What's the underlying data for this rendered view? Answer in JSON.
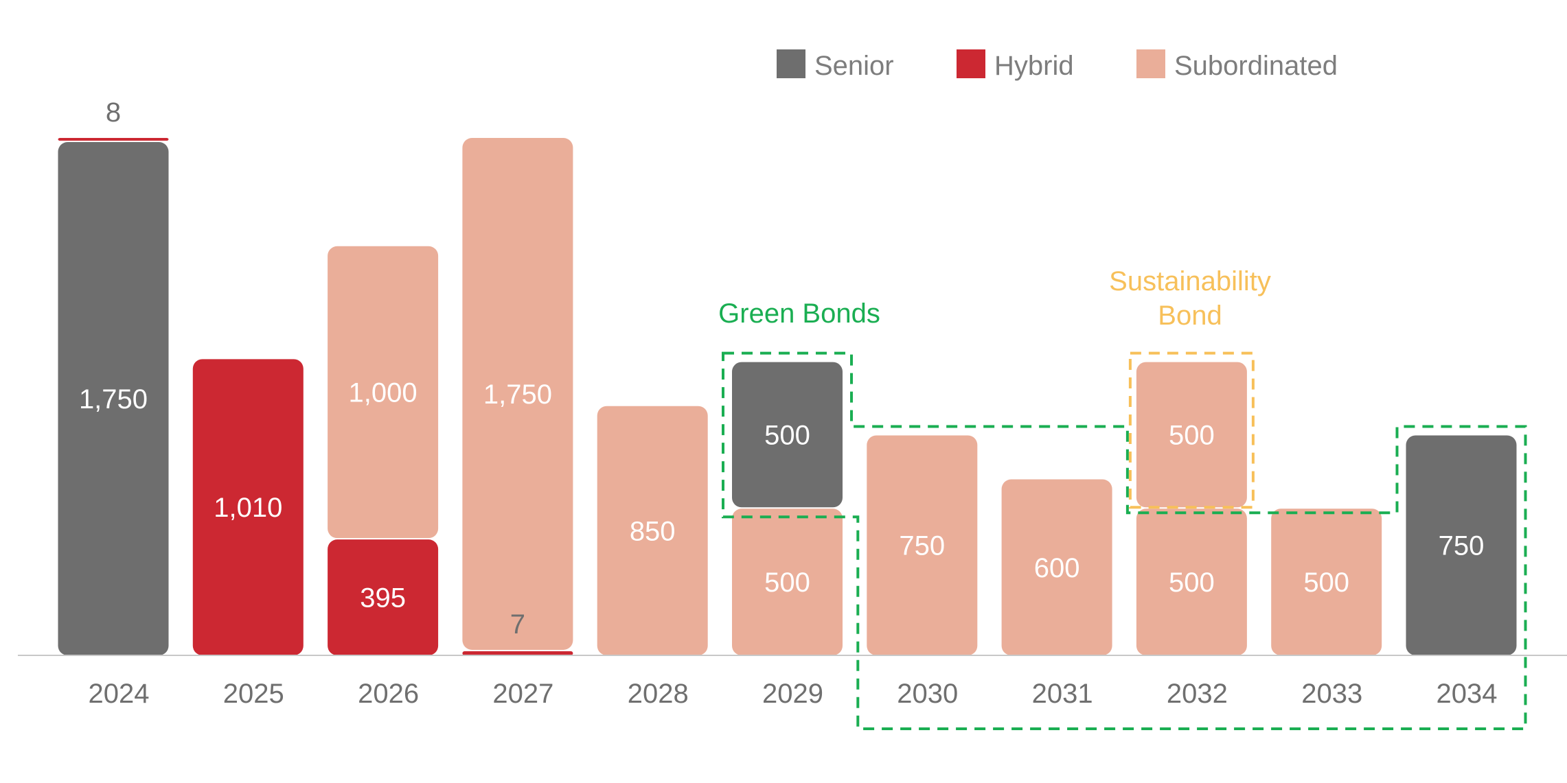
{
  "colors": {
    "Senior": "#6e6e6e",
    "Hybrid": "#cc2832",
    "Subordinated": "#eaae99",
    "green_outline": "#1aae52",
    "orange_outline": "#f7c05a",
    "baseline": "#c8c8c8"
  },
  "chart_data": {
    "type": "bar",
    "stacked": true,
    "grid": false,
    "legend_position": "top-right",
    "categories": [
      "2024",
      "2025",
      "2026",
      "2027",
      "2028",
      "2029",
      "2030",
      "2031",
      "2032",
      "2033",
      "2034"
    ],
    "series": [
      {
        "name": "Senior",
        "values": [
          1750,
          0,
          0,
          0,
          0,
          500,
          0,
          0,
          0,
          0,
          750
        ]
      },
      {
        "name": "Hybrid",
        "values": [
          8,
          1010,
          395,
          7,
          0,
          0,
          0,
          0,
          0,
          0,
          0
        ]
      },
      {
        "name": "Subordinated",
        "values": [
          0,
          0,
          1000,
          1750,
          850,
          500,
          750,
          600,
          1000,
          500,
          0
        ]
      }
    ],
    "segments": [
      {
        "year": "2024",
        "series": "Senior",
        "value": 1750,
        "label": "1,750",
        "label_pos": "inside"
      },
      {
        "year": "2024",
        "series": "Hybrid",
        "value": 8,
        "label": "8",
        "label_pos": "above"
      },
      {
        "year": "2025",
        "series": "Hybrid",
        "value": 1010,
        "label": "1,010",
        "label_pos": "inside"
      },
      {
        "year": "2026",
        "series": "Hybrid",
        "value": 395,
        "label": "395",
        "label_pos": "inside"
      },
      {
        "year": "2026",
        "series": "Subordinated",
        "value": 1000,
        "label": "1,000",
        "label_pos": "inside"
      },
      {
        "year": "2027",
        "series": "Hybrid",
        "value": 7,
        "label": "7",
        "label_pos": "above"
      },
      {
        "year": "2027",
        "series": "Subordinated",
        "value": 1750,
        "label": "1,750",
        "label_pos": "inside"
      },
      {
        "year": "2028",
        "series": "Subordinated",
        "value": 850,
        "label": "850",
        "label_pos": "inside"
      },
      {
        "year": "2029",
        "series": "Subordinated",
        "value": 500,
        "label": "500",
        "label_pos": "inside"
      },
      {
        "year": "2029",
        "series": "Senior",
        "value": 500,
        "label": "500",
        "label_pos": "inside"
      },
      {
        "year": "2030",
        "series": "Subordinated",
        "value": 750,
        "label": "750",
        "label_pos": "inside"
      },
      {
        "year": "2031",
        "series": "Subordinated",
        "value": 600,
        "label": "600",
        "label_pos": "inside"
      },
      {
        "year": "2032",
        "series": "Subordinated",
        "value": 500,
        "label": "500",
        "label_pos": "inside"
      },
      {
        "year": "2032",
        "series": "Subordinated",
        "value": 500,
        "label": "500",
        "label_pos": "inside"
      },
      {
        "year": "2033",
        "series": "Subordinated",
        "value": 500,
        "label": "500",
        "label_pos": "inside"
      },
      {
        "year": "2034",
        "series": "Senior",
        "value": 750,
        "label": "750",
        "label_pos": "inside"
      }
    ],
    "legend": [
      "Senior",
      "Hybrid",
      "Subordinated"
    ],
    "annotations": [
      {
        "text": "Green Bonds",
        "color": "green",
        "style": "dashed-outline"
      },
      {
        "text_lines": [
          "Sustainability",
          "Bond"
        ],
        "color": "orange",
        "style": "dashed-outline"
      }
    ],
    "title": "",
    "xlabel": "",
    "ylabel": ""
  }
}
